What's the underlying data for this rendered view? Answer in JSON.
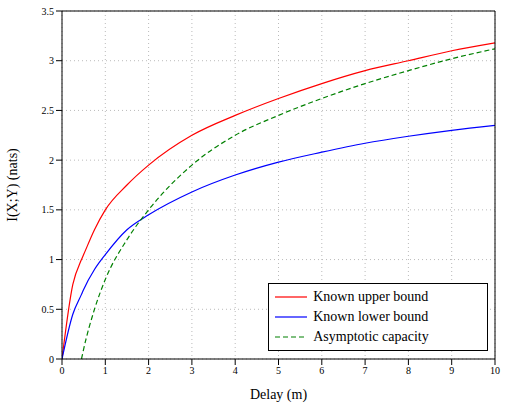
{
  "chart_data": {
    "type": "line",
    "x_label": "Delay (m)",
    "y_label": "I(X;Y) (nats)",
    "x": [
      0,
      0.25,
      0.45,
      0.5,
      0.75,
      1,
      1.5,
      2,
      3,
      4,
      5,
      6,
      7,
      8,
      9,
      10
    ],
    "series": [
      {
        "name": "Known upper bound",
        "color": "#ff0000",
        "line_style": "solid",
        "values": [
          0,
          0.75,
          1.0,
          1.05,
          1.3,
          1.5,
          1.75,
          1.95,
          2.25,
          2.45,
          2.62,
          2.77,
          2.9,
          3.0,
          3.1,
          3.18
        ]
      },
      {
        "name": "Known lower bound",
        "color": "#0000ff",
        "line_style": "solid",
        "values": [
          0,
          0.45,
          0.65,
          0.7,
          0.9,
          1.05,
          1.3,
          1.45,
          1.68,
          1.85,
          1.98,
          2.08,
          2.17,
          2.24,
          2.3,
          2.35
        ]
      },
      {
        "name": "Asymptotic capacity",
        "color": "#008000",
        "line_style": "dashed",
        "values": [
          null,
          null,
          0,
          0.1,
          0.5,
          0.8,
          1.2,
          1.5,
          1.95,
          2.25,
          2.45,
          2.62,
          2.77,
          2.9,
          3.02,
          3.12
        ]
      }
    ],
    "xlim": [
      0,
      10
    ],
    "xticks": [
      0,
      1,
      2,
      3,
      4,
      5,
      6,
      7,
      8,
      9,
      10
    ],
    "ylim": [
      0,
      3.5
    ],
    "yticks": [
      0,
      0.5,
      1,
      1.5,
      2,
      2.5,
      3,
      3.5
    ],
    "grid": true,
    "legend": "lower right"
  }
}
